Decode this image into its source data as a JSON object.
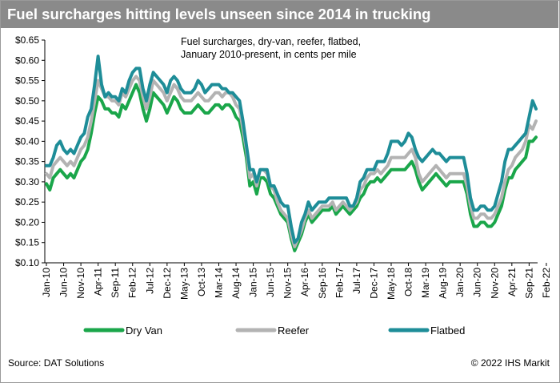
{
  "header": {
    "title": "Fuel surcharges hitting levels unseen since 2014 in trucking"
  },
  "footer": {
    "source": "Source: DAT Solutions",
    "copyright": "© 2022 IHS Markit"
  },
  "colors": {
    "dry_van": "#1aa64a",
    "reefer": "#b3b3b3",
    "flatbed": "#1e8d98",
    "title_bar": "#8a8a8a"
  },
  "chart_data": {
    "type": "line",
    "title": "Fuel surcharges, dry-van, reefer, flatbed,",
    "subtitle": "January 2010-present, in cents per mile",
    "ylim": [
      0.1,
      0.65
    ],
    "yticks": [
      0.1,
      0.15,
      0.2,
      0.25,
      0.3,
      0.35,
      0.4,
      0.45,
      0.5,
      0.55,
      0.6,
      0.65
    ],
    "ytick_labels": [
      "$0.10",
      "$0.15",
      "$0.20",
      "$0.25",
      "$0.30",
      "$0.35",
      "$0.40",
      "$0.45",
      "$0.50",
      "$0.55",
      "$0.60",
      "$0.65"
    ],
    "xtick_labels": [
      "Jan-10",
      "Jun-10",
      "Nov-10",
      "Apr-11",
      "Sep-11",
      "Feb-12",
      "Jul-12",
      "Dec-12",
      "May-13",
      "Oct-13",
      "Mar-14",
      "Aug-14",
      "Jan-15",
      "Jun-15",
      "Nov-15",
      "Apr-16",
      "Sep-16",
      "Feb-17",
      "Jul-17",
      "Dec-17",
      "May-18",
      "Oct-18",
      "Mar-19",
      "Aug-19",
      "Jan-20",
      "Jun-20",
      "Nov-20",
      "Apr-21",
      "Sep-21",
      "Feb-22"
    ],
    "x_start": "Jan-10",
    "x_interval": "month",
    "legend_position": "bottom",
    "grid": false,
    "series": [
      {
        "name": "Dry Van",
        "color": "#1aa64a",
        "values": [
          0.295,
          0.28,
          0.31,
          0.32,
          0.33,
          0.32,
          0.31,
          0.32,
          0.31,
          0.33,
          0.35,
          0.36,
          0.38,
          0.42,
          0.47,
          0.51,
          0.5,
          0.48,
          0.48,
          0.47,
          0.47,
          0.46,
          0.49,
          0.48,
          0.5,
          0.52,
          0.54,
          0.52,
          0.48,
          0.45,
          0.48,
          0.52,
          0.51,
          0.5,
          0.49,
          0.47,
          0.49,
          0.51,
          0.5,
          0.48,
          0.47,
          0.47,
          0.47,
          0.48,
          0.49,
          0.48,
          0.47,
          0.47,
          0.48,
          0.49,
          0.49,
          0.48,
          0.49,
          0.49,
          0.48,
          0.46,
          0.45,
          0.41,
          0.36,
          0.29,
          0.3,
          0.27,
          0.31,
          0.31,
          0.3,
          0.27,
          0.26,
          0.24,
          0.22,
          0.21,
          0.2,
          0.16,
          0.13,
          0.15,
          0.17,
          0.2,
          0.22,
          0.2,
          0.21,
          0.22,
          0.23,
          0.23,
          0.23,
          0.24,
          0.22,
          0.23,
          0.24,
          0.23,
          0.22,
          0.23,
          0.24,
          0.26,
          0.27,
          0.29,
          0.3,
          0.3,
          0.31,
          0.3,
          0.31,
          0.32,
          0.33,
          0.33,
          0.33,
          0.33,
          0.33,
          0.34,
          0.35,
          0.33,
          0.3,
          0.28,
          0.29,
          0.3,
          0.31,
          0.32,
          0.31,
          0.3,
          0.29,
          0.3,
          0.3,
          0.3,
          0.3,
          0.3,
          0.27,
          0.22,
          0.19,
          0.19,
          0.2,
          0.2,
          0.19,
          0.19,
          0.2,
          0.22,
          0.24,
          0.28,
          0.31,
          0.31,
          0.33,
          0.34,
          0.35,
          0.36,
          0.4,
          0.4,
          0.41
        ]
      },
      {
        "name": "Reefer",
        "color": "#b3b3b3",
        "values": [
          0.32,
          0.31,
          0.34,
          0.35,
          0.36,
          0.35,
          0.34,
          0.35,
          0.34,
          0.36,
          0.38,
          0.39,
          0.41,
          0.45,
          0.5,
          0.55,
          0.53,
          0.51,
          0.51,
          0.5,
          0.5,
          0.49,
          0.52,
          0.51,
          0.53,
          0.55,
          0.56,
          0.55,
          0.51,
          0.48,
          0.51,
          0.55,
          0.54,
          0.53,
          0.52,
          0.5,
          0.52,
          0.54,
          0.53,
          0.51,
          0.5,
          0.5,
          0.5,
          0.51,
          0.52,
          0.51,
          0.5,
          0.5,
          0.51,
          0.52,
          0.52,
          0.51,
          0.52,
          0.52,
          0.51,
          0.49,
          0.48,
          0.43,
          0.38,
          0.31,
          0.32,
          0.29,
          0.33,
          0.33,
          0.32,
          0.29,
          0.28,
          0.25,
          0.23,
          0.22,
          0.21,
          0.17,
          0.14,
          0.16,
          0.18,
          0.21,
          0.23,
          0.21,
          0.22,
          0.23,
          0.24,
          0.24,
          0.24,
          0.25,
          0.23,
          0.24,
          0.25,
          0.24,
          0.23,
          0.24,
          0.25,
          0.28,
          0.29,
          0.31,
          0.32,
          0.32,
          0.33,
          0.32,
          0.33,
          0.34,
          0.36,
          0.36,
          0.36,
          0.36,
          0.36,
          0.37,
          0.38,
          0.36,
          0.32,
          0.3,
          0.31,
          0.32,
          0.33,
          0.34,
          0.33,
          0.32,
          0.31,
          0.32,
          0.32,
          0.32,
          0.32,
          0.32,
          0.29,
          0.24,
          0.21,
          0.21,
          0.22,
          0.22,
          0.21,
          0.21,
          0.22,
          0.24,
          0.26,
          0.3,
          0.33,
          0.34,
          0.36,
          0.37,
          0.38,
          0.4,
          0.44,
          0.43,
          0.45
        ]
      },
      {
        "name": "Flatbed",
        "color": "#1e8d98",
        "values": [
          0.34,
          0.34,
          0.36,
          0.39,
          0.4,
          0.38,
          0.37,
          0.38,
          0.37,
          0.39,
          0.41,
          0.42,
          0.46,
          0.48,
          0.54,
          0.61,
          0.54,
          0.51,
          0.52,
          0.51,
          0.51,
          0.5,
          0.53,
          0.52,
          0.55,
          0.57,
          0.58,
          0.58,
          0.53,
          0.5,
          0.54,
          0.57,
          0.56,
          0.55,
          0.54,
          0.52,
          0.55,
          0.56,
          0.55,
          0.53,
          0.52,
          0.52,
          0.52,
          0.53,
          0.55,
          0.54,
          0.52,
          0.53,
          0.54,
          0.54,
          0.54,
          0.53,
          0.53,
          0.52,
          0.52,
          0.51,
          0.5,
          0.45,
          0.39,
          0.33,
          0.33,
          0.3,
          0.33,
          0.33,
          0.33,
          0.29,
          0.29,
          0.27,
          0.25,
          0.24,
          0.24,
          0.19,
          0.15,
          0.16,
          0.2,
          0.22,
          0.25,
          0.23,
          0.24,
          0.25,
          0.25,
          0.25,
          0.26,
          0.26,
          0.26,
          0.26,
          0.26,
          0.26,
          0.24,
          0.24,
          0.26,
          0.3,
          0.31,
          0.33,
          0.33,
          0.33,
          0.35,
          0.35,
          0.35,
          0.37,
          0.4,
          0.4,
          0.4,
          0.39,
          0.4,
          0.42,
          0.41,
          0.38,
          0.36,
          0.35,
          0.36,
          0.37,
          0.38,
          0.37,
          0.37,
          0.36,
          0.35,
          0.36,
          0.36,
          0.36,
          0.36,
          0.36,
          0.32,
          0.26,
          0.23,
          0.23,
          0.24,
          0.24,
          0.23,
          0.23,
          0.24,
          0.27,
          0.3,
          0.35,
          0.38,
          0.38,
          0.39,
          0.4,
          0.41,
          0.42,
          0.46,
          0.5,
          0.48
        ]
      }
    ]
  }
}
